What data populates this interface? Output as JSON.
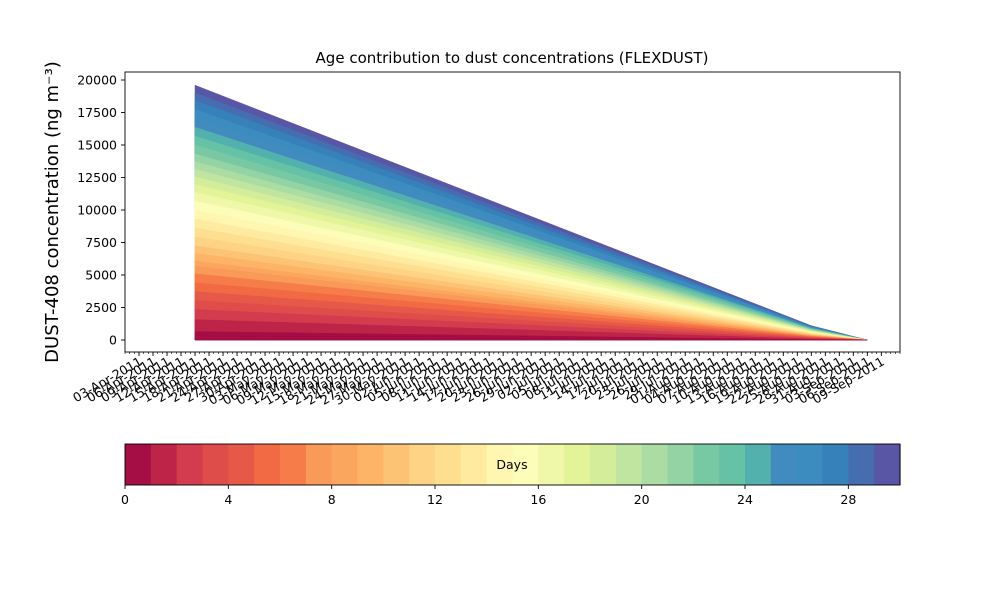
{
  "chart_data": {
    "type": "area",
    "stacked": true,
    "title": "Age contribution to dust concentrations (FLEXDUST)",
    "ylabel": "DUST-408 concentration (ng m⁻³)",
    "xlabel": "",
    "ylim": [
      0,
      21000
    ],
    "yticks": [
      0,
      2500,
      5000,
      7500,
      10000,
      12500,
      15000,
      17500,
      20000
    ],
    "x_start": "2011-04-15",
    "x_end": "2011-09-06",
    "xlim": [
      "2011-03-31",
      "2011-09-13"
    ],
    "x_tick_labels": [
      "03-Apr-2011",
      "06-Apr-2011",
      "09-Apr-2011",
      "12-Apr-2011",
      "15-Apr-2011",
      "18-Apr-2011",
      "21-Apr-2011",
      "24-Apr-2011",
      "27-Apr-2011",
      "30-Apr-2011",
      "03-May-2011",
      "06-May-2011",
      "09-May-2011",
      "12-May-2011",
      "15-May-2011",
      "18-May-2011",
      "21-May-2011",
      "24-May-2011",
      "27-May-2011",
      "30-May-2011",
      "02-Jun-2011",
      "05-Jun-2011",
      "08-Jun-2011",
      "11-Jun-2011",
      "14-Jun-2011",
      "17-Jun-2011",
      "20-Jun-2011",
      "23-Jun-2011",
      "26-Jun-2011",
      "29-Jun-2011",
      "02-Jul-2011",
      "05-Jul-2011",
      "08-Jul-2011",
      "11-Jul-2011",
      "14-Jul-2011",
      "17-Jul-2011",
      "20-Jul-2011",
      "23-Jul-2011",
      "26-Jul-2011",
      "29-Jul-2011",
      "01-Aug-2011",
      "04-Aug-2011",
      "07-Aug-2011",
      "10-Aug-2011",
      "13-Aug-2011",
      "16-Aug-2011",
      "19-Aug-2011",
      "22-Aug-2011",
      "25-Aug-2011",
      "28-Aug-2011",
      "31-Aug-2011",
      "03-Sep-2011",
      "06-Sep-2011",
      "09-Sep-2011"
    ],
    "x_dates": [
      "2011-04-03",
      "2011-04-06",
      "2011-04-09",
      "2011-04-12",
      "2011-04-15",
      "2011-04-18",
      "2011-04-21",
      "2011-04-24",
      "2011-04-27",
      "2011-04-30",
      "2011-05-03",
      "2011-05-06",
      "2011-05-09",
      "2011-05-12",
      "2011-05-15",
      "2011-05-18",
      "2011-05-21",
      "2011-05-24",
      "2011-05-27",
      "2011-05-30",
      "2011-06-02",
      "2011-06-05",
      "2011-06-08",
      "2011-06-11",
      "2011-06-14",
      "2011-06-17",
      "2011-06-20",
      "2011-06-23",
      "2011-06-26",
      "2011-06-29",
      "2011-07-02",
      "2011-07-05",
      "2011-07-08",
      "2011-07-11",
      "2011-07-14",
      "2011-07-17",
      "2011-07-20",
      "2011-07-23",
      "2011-07-26",
      "2011-07-29",
      "2011-08-01",
      "2011-08-04",
      "2011-08-07",
      "2011-08-10",
      "2011-08-13",
      "2011-08-16",
      "2011-08-19",
      "2011-08-22",
      "2011-08-25",
      "2011-08-28",
      "2011-08-31",
      "2011-09-03",
      "2011-09-06",
      "2011-09-09"
    ],
    "breakpoints": [
      {
        "x": "2011-04-15",
        "total": 19600
      },
      {
        "x": "2011-08-25",
        "total": 1100
      },
      {
        "x": "2011-09-06",
        "total": 0
      }
    ],
    "age_band_cumulative_fractions": [
      0.018,
      0.033,
      0.08,
      0.12,
      0.155,
      0.19,
      0.225,
      0.26,
      0.29,
      0.31,
      0.34,
      0.37,
      0.405,
      0.44,
      0.475,
      0.51,
      0.545,
      0.58,
      0.61,
      0.64,
      0.67,
      0.7,
      0.73,
      0.765,
      0.8,
      0.835,
      0.87,
      0.905,
      0.94,
      0.97,
      1.0
    ],
    "grid": false,
    "legend": "none",
    "colorbar": {
      "label": "Days",
      "min": 0,
      "max": 30,
      "ticks": [
        0,
        4,
        8,
        12,
        16,
        20,
        24,
        28
      ],
      "colors": [
        "#a50d45",
        "#be2447",
        "#d33c4e",
        "#df4d4b",
        "#e65848",
        "#f26a43",
        "#f67c4a",
        "#f99a58",
        "#fba65e",
        "#fdb466",
        "#fdc374",
        "#fed385",
        "#fedf8f",
        "#feeb9f",
        "#fff7b1",
        "#fbfdb8",
        "#eff8a8",
        "#e3f398",
        "#d4ed9b",
        "#c0e5a0",
        "#aadca4",
        "#94d3a4",
        "#79c8a4",
        "#66c2a5",
        "#53b1ad",
        "#418bbf",
        "#3c8cbf",
        "#3681ba",
        "#456db0",
        "#5856a5"
      ]
    }
  }
}
